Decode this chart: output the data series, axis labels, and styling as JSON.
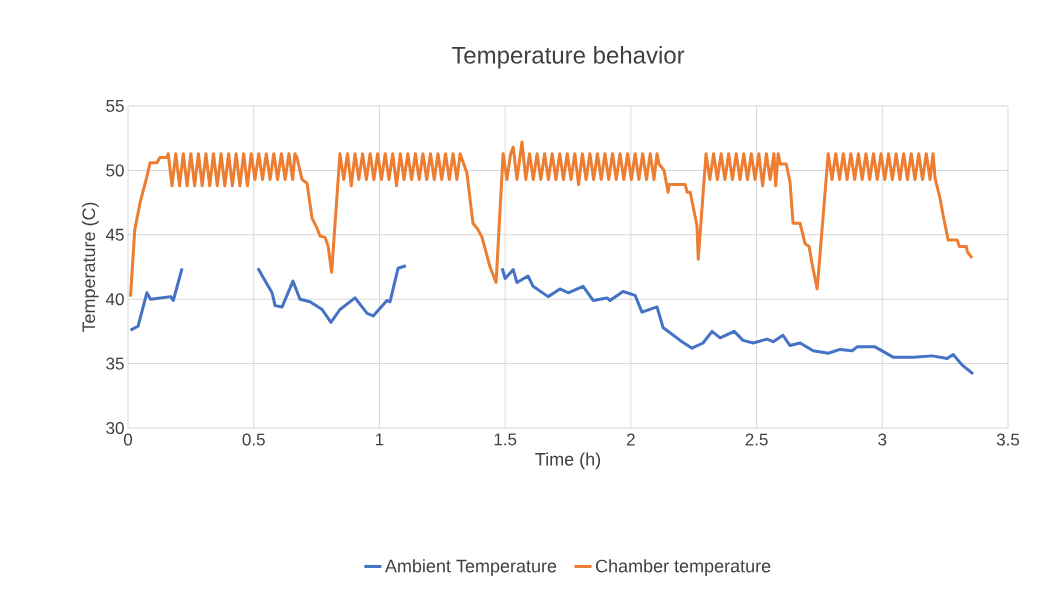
{
  "chart_data": {
    "type": "line",
    "title": "Temperature behavior",
    "xlabel": "Time (h)",
    "ylabel": "Temperature (C)",
    "xlim": [
      0,
      3.5
    ],
    "xticks": [
      0,
      0.5,
      1,
      1.5,
      2,
      2.5,
      3,
      3.5
    ],
    "ylim": [
      30,
      55
    ],
    "yticks": [
      30,
      35,
      40,
      45,
      50,
      55
    ],
    "grid": true,
    "legend": "bottom",
    "marker": "none",
    "line_style": "solid",
    "series": [
      {
        "name": "Ambient Temperature",
        "color": "#4472c4",
        "x": [
          0.01,
          0.04,
          0.075,
          0.09,
          0.17,
          0.18,
          0.215,
          0.36,
          0.517,
          0.537,
          0.573,
          0.585,
          0.613,
          0.656,
          0.684,
          0.724,
          0.772,
          0.807,
          0.843,
          0.903,
          0.951,
          0.975,
          1.03,
          1.042,
          1.074,
          1.105,
          1.3,
          1.488,
          1.5,
          1.532,
          1.547,
          1.591,
          1.611,
          1.671,
          1.718,
          1.751,
          1.81,
          1.85,
          1.905,
          1.917,
          1.969,
          2.017,
          2.044,
          2.104,
          2.128,
          2.196,
          2.243,
          2.287,
          2.323,
          2.355,
          2.411,
          2.446,
          2.486,
          2.541,
          2.566,
          2.605,
          2.633,
          2.673,
          2.725,
          2.785,
          2.832,
          2.88,
          2.9,
          2.971,
          3.043,
          3.123,
          3.198,
          3.258,
          3.282,
          3.317,
          3.361
        ],
        "values": [
          37.6,
          37.9,
          40.5,
          40.0,
          40.2,
          39.9,
          42.4,
          null,
          42.4,
          41.7,
          40.5,
          39.5,
          39.4,
          41.4,
          40.0,
          39.8,
          39.2,
          38.2,
          39.2,
          40.1,
          38.9,
          38.7,
          39.9,
          39.8,
          42.4,
          42.6,
          null,
          42.4,
          41.6,
          42.3,
          41.3,
          41.8,
          41.0,
          40.2,
          40.8,
          40.5,
          41.0,
          39.9,
          40.1,
          39.9,
          40.6,
          40.3,
          39.0,
          39.4,
          37.8,
          36.8,
          36.2,
          36.6,
          37.5,
          37.0,
          37.5,
          36.8,
          36.6,
          36.9,
          36.7,
          37.2,
          36.4,
          36.6,
          36.0,
          35.8,
          36.1,
          36.0,
          36.3,
          36.3,
          35.5,
          35.5,
          35.6,
          35.4,
          35.7,
          34.9,
          34.2
        ]
      },
      {
        "name": "Chamber temperature",
        "color": "#ed7d31",
        "x": [
          0.01,
          0.027,
          0.048,
          0.075,
          0.088,
          0.115,
          0.127,
          0.155,
          0.16,
          0.175,
          0.19,
          0.205,
          0.22,
          0.235,
          0.25,
          0.265,
          0.28,
          0.295,
          0.31,
          0.325,
          0.34,
          0.355,
          0.37,
          0.385,
          0.4,
          0.415,
          0.43,
          0.445,
          0.46,
          0.475,
          0.49,
          0.505,
          0.52,
          0.535,
          0.55,
          0.565,
          0.58,
          0.595,
          0.61,
          0.625,
          0.64,
          0.655,
          0.664,
          0.672,
          0.692,
          0.712,
          0.732,
          0.752,
          0.764,
          0.784,
          0.796,
          0.81,
          0.843,
          0.858,
          0.873,
          0.888,
          0.903,
          0.918,
          0.933,
          0.948,
          0.963,
          0.978,
          0.993,
          1.008,
          1.023,
          1.038,
          1.053,
          1.068,
          1.083,
          1.098,
          1.113,
          1.128,
          1.143,
          1.158,
          1.173,
          1.188,
          1.203,
          1.218,
          1.233,
          1.248,
          1.263,
          1.278,
          1.293,
          1.308,
          1.321,
          1.348,
          1.372,
          1.392,
          1.408,
          1.44,
          1.464,
          1.492,
          1.507,
          1.522,
          1.532,
          1.547,
          1.567,
          1.582,
          1.597,
          1.612,
          1.627,
          1.642,
          1.657,
          1.672,
          1.687,
          1.702,
          1.717,
          1.732,
          1.747,
          1.762,
          1.777,
          1.792,
          1.807,
          1.822,
          1.837,
          1.852,
          1.867,
          1.882,
          1.897,
          1.912,
          1.927,
          1.942,
          1.957,
          1.972,
          1.987,
          2.002,
          2.017,
          2.032,
          2.047,
          2.062,
          2.077,
          2.092,
          2.104,
          2.112,
          2.132,
          2.148,
          2.152,
          2.216,
          2.224,
          2.236,
          2.263,
          2.268,
          2.299,
          2.314,
          2.329,
          2.344,
          2.359,
          2.374,
          2.389,
          2.404,
          2.419,
          2.434,
          2.449,
          2.464,
          2.479,
          2.494,
          2.509,
          2.524,
          2.539,
          2.554,
          2.569,
          2.576,
          2.586,
          2.594,
          2.618,
          2.633,
          2.645,
          2.673,
          2.693,
          2.709,
          2.721,
          2.741,
          2.785,
          2.8,
          2.815,
          2.83,
          2.845,
          2.86,
          2.875,
          2.89,
          2.905,
          2.92,
          2.935,
          2.95,
          2.965,
          2.98,
          2.995,
          3.01,
          3.025,
          3.04,
          3.055,
          3.07,
          3.085,
          3.1,
          3.115,
          3.13,
          3.145,
          3.16,
          3.175,
          3.19,
          3.202,
          3.21,
          3.23,
          3.242,
          3.262,
          3.298,
          3.306,
          3.334,
          3.338,
          3.357
        ],
        "values": [
          40.2,
          45.4,
          47.5,
          49.5,
          50.6,
          50.6,
          51.0,
          51.0,
          51.3,
          48.8,
          51.3,
          48.8,
          51.3,
          48.8,
          51.3,
          48.8,
          51.3,
          48.8,
          51.3,
          48.8,
          51.3,
          48.8,
          51.3,
          48.8,
          51.3,
          48.8,
          51.3,
          48.8,
          51.3,
          48.8,
          51.3,
          49.3,
          51.3,
          49.3,
          51.3,
          49.3,
          51.3,
          49.3,
          51.3,
          49.3,
          51.3,
          49.3,
          51.3,
          51.0,
          49.3,
          49.0,
          46.3,
          45.5,
          44.9,
          44.8,
          44.1,
          42.1,
          51.3,
          49.3,
          51.3,
          48.8,
          51.3,
          49.3,
          51.3,
          49.3,
          51.3,
          49.3,
          51.3,
          49.3,
          51.3,
          49.3,
          51.3,
          48.8,
          51.3,
          49.3,
          51.3,
          49.3,
          51.3,
          49.3,
          51.3,
          49.3,
          51.3,
          49.3,
          51.3,
          49.3,
          51.3,
          49.3,
          51.3,
          49.3,
          51.3,
          49.8,
          45.9,
          45.4,
          44.8,
          42.5,
          41.3,
          51.3,
          49.3,
          51.3,
          51.8,
          49.3,
          52.2,
          49.3,
          51.3,
          49.3,
          51.3,
          49.3,
          51.3,
          49.3,
          51.3,
          49.3,
          51.3,
          49.3,
          51.3,
          49.3,
          51.3,
          48.9,
          51.3,
          49.3,
          51.3,
          49.3,
          51.3,
          49.3,
          51.3,
          49.3,
          51.3,
          49.3,
          51.3,
          49.3,
          51.3,
          49.3,
          51.3,
          49.3,
          51.3,
          49.3,
          51.3,
          49.3,
          51.3,
          50.5,
          50.0,
          48.3,
          48.9,
          48.9,
          48.3,
          48.3,
          45.7,
          43.1,
          51.3,
          49.3,
          51.3,
          49.3,
          51.3,
          49.3,
          51.3,
          49.3,
          51.3,
          49.3,
          51.3,
          49.3,
          51.3,
          49.3,
          51.3,
          48.8,
          51.3,
          49.3,
          51.3,
          48.8,
          51.3,
          50.5,
          50.5,
          49.1,
          45.9,
          45.9,
          44.3,
          44.1,
          42.7,
          40.8,
          51.3,
          49.3,
          51.3,
          49.3,
          51.3,
          49.3,
          51.3,
          49.3,
          51.3,
          49.3,
          51.3,
          49.3,
          51.3,
          49.3,
          51.3,
          49.3,
          51.3,
          49.3,
          51.3,
          49.3,
          51.3,
          49.3,
          51.3,
          49.3,
          51.3,
          49.3,
          51.3,
          49.3,
          51.3,
          49.4,
          47.8,
          46.5,
          44.6,
          44.6,
          44.1,
          44.1,
          43.7,
          43.2
        ]
      }
    ]
  }
}
